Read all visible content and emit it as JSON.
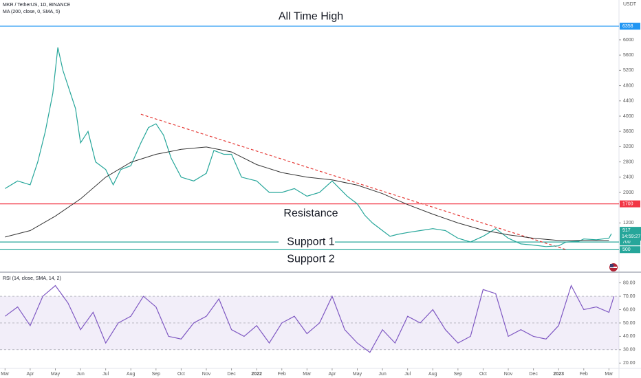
{
  "chart_data": [
    {
      "type": "line",
      "y_axis_label": "USDT",
      "xlim": [
        -0.2,
        24.4
      ],
      "ylim": [
        0,
        6900
      ],
      "yticks": [
        1200,
        2000,
        2400,
        2800,
        3200,
        3600,
        4000,
        4400,
        4800,
        5200,
        5600,
        6000
      ],
      "grid": false,
      "countdown": "14:59:27",
      "series": [
        {
          "name": "MKR / TetherUS, 1D, BINANCE",
          "color": "#26a69a",
          "x": [
            0,
            0.5,
            1,
            1.3,
            1.6,
            1.9,
            2.1,
            2.3,
            2.5,
            2.8,
            3,
            3.3,
            3.6,
            4,
            4.3,
            4.6,
            5,
            5.4,
            5.7,
            6,
            6.3,
            6.6,
            7,
            7.5,
            8,
            8.3,
            8.7,
            9,
            9.4,
            10,
            10.5,
            11,
            11.5,
            12,
            12.5,
            13,
            13.3,
            13.6,
            14,
            14.3,
            14.6,
            15,
            15.3,
            15.6,
            16,
            16.5,
            17,
            17.5,
            18,
            18.5,
            19,
            19.5,
            20,
            20.5,
            21,
            21.5,
            22,
            22.3,
            22.8,
            23,
            23.5,
            24,
            24.1
          ],
          "values": [
            2100,
            2300,
            2200,
            2800,
            3600,
            4600,
            5800,
            5200,
            4800,
            4200,
            3300,
            3600,
            2800,
            2600,
            2200,
            2600,
            2700,
            3300,
            3700,
            3800,
            3500,
            2900,
            2400,
            2300,
            2500,
            3100,
            3000,
            3000,
            2400,
            2300,
            2000,
            2000,
            2100,
            1900,
            2000,
            2300,
            2100,
            1900,
            1700,
            1400,
            1200,
            1000,
            850,
            900,
            950,
            1000,
            1050,
            1000,
            800,
            700,
            850,
            1050,
            800,
            650,
            620,
            580,
            600,
            700,
            720,
            780,
            760,
            800,
            917
          ]
        },
        {
          "name": "MA (200, close, 0, SMA, 5)",
          "color": "#333333",
          "x": [
            0,
            1,
            2,
            3,
            4,
            5,
            6,
            7,
            8,
            9,
            10,
            11,
            12,
            13,
            14,
            15,
            16,
            17,
            18,
            19,
            20,
            21,
            22,
            23,
            24
          ],
          "values": [
            830,
            1000,
            1380,
            1830,
            2400,
            2790,
            3000,
            3130,
            3190,
            3060,
            2730,
            2520,
            2400,
            2330,
            2190,
            1970,
            1680,
            1430,
            1200,
            1010,
            890,
            800,
            740,
            740,
            740
          ]
        }
      ],
      "trendlines": [
        {
          "color": "#e53935",
          "x": [
            5.4,
            22.3
          ],
          "values": [
            4050,
            500
          ]
        }
      ],
      "levels": [
        {
          "label": "All Time High",
          "value": 6358,
          "color": "#2196f3"
        },
        {
          "label": "Resistance",
          "value": 1700,
          "color": "#f23645"
        },
        {
          "label": "Support 1",
          "value": 700,
          "color": "#26a69a"
        },
        {
          "label": "Support 2",
          "value": 500,
          "color": "#26a69a"
        }
      ]
    },
    {
      "type": "line",
      "xlim": [
        -0.2,
        24.4
      ],
      "ylim": [
        15,
        87
      ],
      "yticks": [
        {
          "value": 20,
          "label": "20.00"
        },
        {
          "value": 30,
          "label": "30.00"
        },
        {
          "value": 40,
          "label": "40.00"
        },
        {
          "value": 50,
          "label": "50.00"
        },
        {
          "value": 60,
          "label": "60.00"
        },
        {
          "value": 70,
          "label": "70.00"
        },
        {
          "value": 80,
          "label": "80.00"
        }
      ],
      "xticks": [
        {
          "value": 0,
          "label": "Mar"
        },
        {
          "value": 1,
          "label": "Apr"
        },
        {
          "value": 2,
          "label": "May"
        },
        {
          "value": 3,
          "label": "Jun"
        },
        {
          "value": 4,
          "label": "Jul"
        },
        {
          "value": 5,
          "label": "Aug"
        },
        {
          "value": 6,
          "label": "Sep"
        },
        {
          "value": 7,
          "label": "Oct"
        },
        {
          "value": 8,
          "label": "Nov"
        },
        {
          "value": 9,
          "label": "Dec"
        },
        {
          "value": 10,
          "label": "2022"
        },
        {
          "value": 11,
          "label": "Feb"
        },
        {
          "value": 12,
          "label": "Mar"
        },
        {
          "value": 13,
          "label": "Apr"
        },
        {
          "value": 14,
          "label": "May"
        },
        {
          "value": 15,
          "label": "Jun"
        },
        {
          "value": 16,
          "label": "Jul"
        },
        {
          "value": 17,
          "label": "Aug"
        },
        {
          "value": 18,
          "label": "Sep"
        },
        {
          "value": 19,
          "label": "Oct"
        },
        {
          "value": 20,
          "label": "Nov"
        },
        {
          "value": 21,
          "label": "Dec"
        },
        {
          "value": 22,
          "label": "2023"
        },
        {
          "value": 23,
          "label": "Feb"
        },
        {
          "value": 24,
          "label": "Mar"
        }
      ],
      "band": {
        "lower": 30,
        "upper": 70,
        "middle": 50,
        "color": "#7e57c2"
      },
      "series": [
        {
          "name": "RSI (14, close, SMA, 14, 2)",
          "color": "#7e57c2",
          "x": [
            0,
            0.5,
            1,
            1.5,
            2,
            2.5,
            3,
            3.5,
            4,
            4.5,
            5,
            5.5,
            6,
            6.5,
            7,
            7.5,
            8,
            8.5,
            9,
            9.5,
            10,
            10.5,
            11,
            11.5,
            12,
            12.5,
            13,
            13.5,
            14,
            14.5,
            15,
            15.5,
            16,
            16.5,
            17,
            17.5,
            18,
            18.5,
            19,
            19.5,
            20,
            20.5,
            21,
            21.5,
            22,
            22.5,
            23,
            23.5,
            24,
            24.2
          ],
          "values": [
            55,
            62,
            48,
            70,
            78,
            65,
            45,
            58,
            35,
            50,
            55,
            70,
            62,
            40,
            38,
            50,
            55,
            68,
            45,
            40,
            48,
            35,
            50,
            55,
            42,
            50,
            70,
            45,
            35,
            28,
            45,
            35,
            55,
            50,
            60,
            45,
            35,
            40,
            75,
            72,
            40,
            45,
            40,
            38,
            48,
            78,
            60,
            62,
            58,
            70
          ]
        }
      ]
    }
  ]
}
